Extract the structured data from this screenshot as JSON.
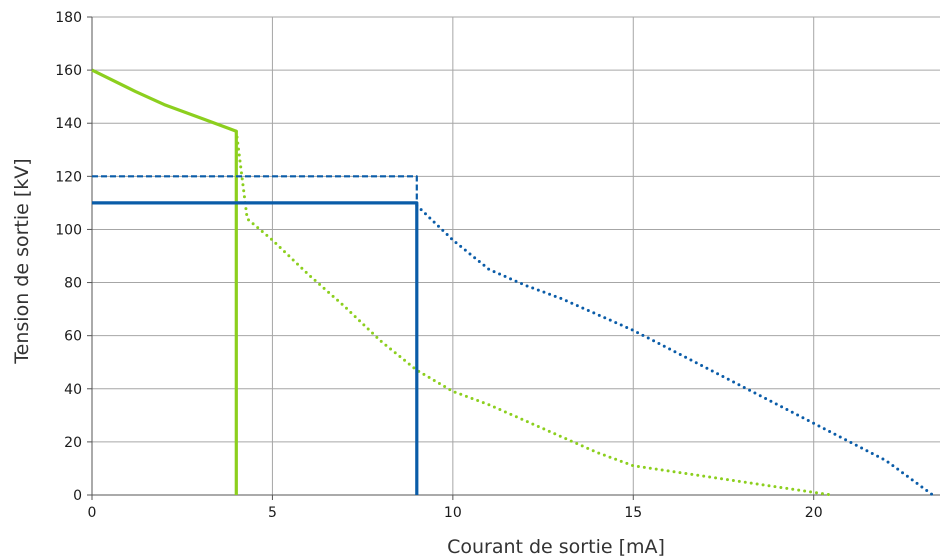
{
  "chart_data": {
    "type": "line",
    "title": "",
    "xlabel": "Courant de sortie [mA]",
    "ylabel": "Tension de sortie [kV]",
    "xlim": [
      0,
      23.5
    ],
    "ylim": [
      0,
      180
    ],
    "xticks": [
      0,
      5,
      10,
      15,
      20
    ],
    "yticks": [
      0,
      20,
      40,
      60,
      80,
      100,
      120,
      140,
      160,
      180
    ],
    "grid": true,
    "legend": "none",
    "series": [
      {
        "color": "#8ccf1e",
        "style": "solid",
        "points": [
          [
            0,
            160
          ],
          [
            1.2,
            152
          ],
          [
            2,
            147
          ],
          [
            3,
            142
          ],
          [
            4,
            137
          ],
          [
            4,
            0
          ]
        ]
      },
      {
        "color": "#8ccf1e",
        "style": "dotted",
        "points": [
          [
            4,
            137
          ],
          [
            4.1,
            126
          ],
          [
            4.3,
            104
          ],
          [
            5,
            96
          ],
          [
            6,
            83
          ],
          [
            7,
            71
          ],
          [
            8,
            58
          ],
          [
            9,
            47
          ],
          [
            10,
            39
          ],
          [
            11,
            34
          ],
          [
            12,
            28
          ],
          [
            13,
            22
          ],
          [
            14,
            16
          ],
          [
            15,
            11
          ],
          [
            16,
            9
          ],
          [
            18,
            5
          ],
          [
            20.5,
            0
          ]
        ]
      },
      {
        "color": "#0a5ca8",
        "style": "solid",
        "points": [
          [
            0,
            110
          ],
          [
            9,
            110
          ],
          [
            9,
            0
          ]
        ]
      },
      {
        "color": "#0a5ca8",
        "style": "dashed",
        "points": [
          [
            0,
            120
          ],
          [
            9,
            120
          ],
          [
            9,
            109
          ]
        ]
      },
      {
        "color": "#0a5ca8",
        "style": "dotted",
        "points": [
          [
            9,
            109
          ],
          [
            10,
            96
          ],
          [
            11,
            85
          ],
          [
            12,
            79
          ],
          [
            13,
            74
          ],
          [
            14,
            68
          ],
          [
            15,
            62
          ],
          [
            16,
            55
          ],
          [
            17,
            48
          ],
          [
            18,
            41
          ],
          [
            19,
            34
          ],
          [
            20,
            27
          ],
          [
            21,
            20
          ],
          [
            22,
            13
          ],
          [
            23.3,
            0
          ]
        ]
      }
    ]
  }
}
